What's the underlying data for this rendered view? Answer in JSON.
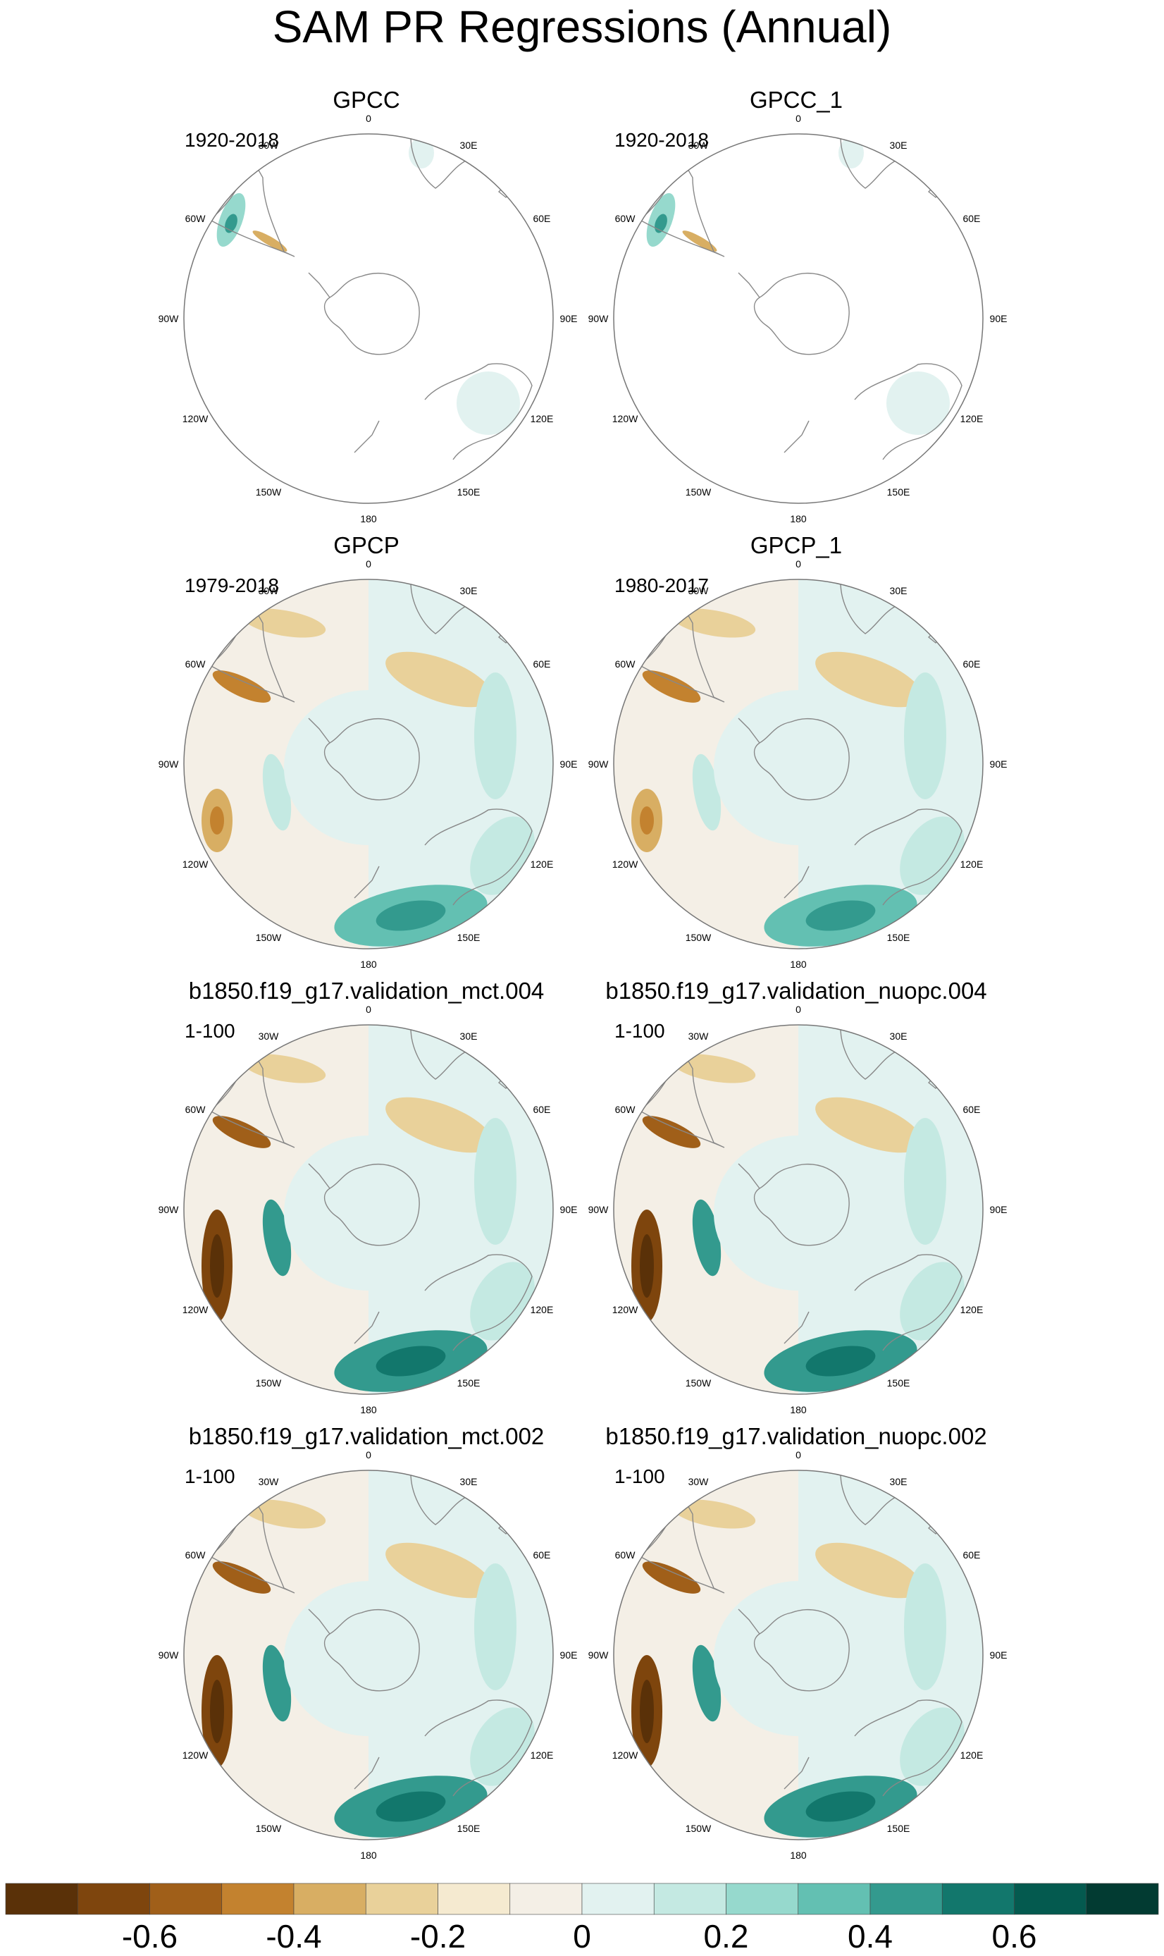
{
  "title": "SAM PR Regressions (Annual)",
  "colors": {
    "land_outline": "#888888",
    "background": "#ffffff",
    "map_bg": "#eef7f6",
    "neutral_warm": "#f4efe6",
    "neutral_cool": "#e2f2f0"
  },
  "lon_labels": [
    "0",
    "30E",
    "60E",
    "90E",
    "120E",
    "150E",
    "180",
    "150W",
    "120W",
    "90W",
    "60W",
    "30W"
  ],
  "panels": [
    {
      "id": "gpcc",
      "title": "GPCC",
      "period": "1920-2018",
      "coverage": "land"
    },
    {
      "id": "gpcc1",
      "title": "GPCC_1",
      "period": "1920-2018",
      "coverage": "land"
    },
    {
      "id": "gpcp",
      "title": "GPCP",
      "period": "1979-2018",
      "coverage": "global"
    },
    {
      "id": "gpcp1",
      "title": "GPCP_1",
      "period": "1980-2017",
      "coverage": "global"
    },
    {
      "id": "mct004",
      "title": "b1850.f19_g17.validation_mct.004",
      "period": "1-100",
      "coverage": "global"
    },
    {
      "id": "nuopc004",
      "title": "b1850.f19_g17.validation_nuopc.004",
      "period": "1-100",
      "coverage": "global"
    },
    {
      "id": "mct002",
      "title": "b1850.f19_g17.validation_mct.002",
      "period": "1-100",
      "coverage": "global"
    },
    {
      "id": "nuopc002",
      "title": "b1850.f19_g17.validation_nuopc.002",
      "period": "1-100",
      "coverage": "global"
    }
  ],
  "colorbar": {
    "colors": [
      "#5a3108",
      "#7e450d",
      "#a05f19",
      "#c3822f",
      "#d8ae63",
      "#e9d19a",
      "#f5ead0",
      "#f4efe6",
      "#e2f2f0",
      "#c4e9e2",
      "#96d9cd",
      "#63c0b2",
      "#339a8e",
      "#12776c",
      "#045a4f",
      "#023b32"
    ],
    "labels": [
      "-0.6",
      "-0.4",
      "-0.2",
      "0",
      "0.2",
      "0.4",
      "0.6"
    ],
    "label_values": [
      -0.6,
      -0.4,
      -0.2,
      0,
      0.2,
      0.4,
      0.6
    ],
    "range": [
      -0.8,
      0.8
    ]
  }
}
